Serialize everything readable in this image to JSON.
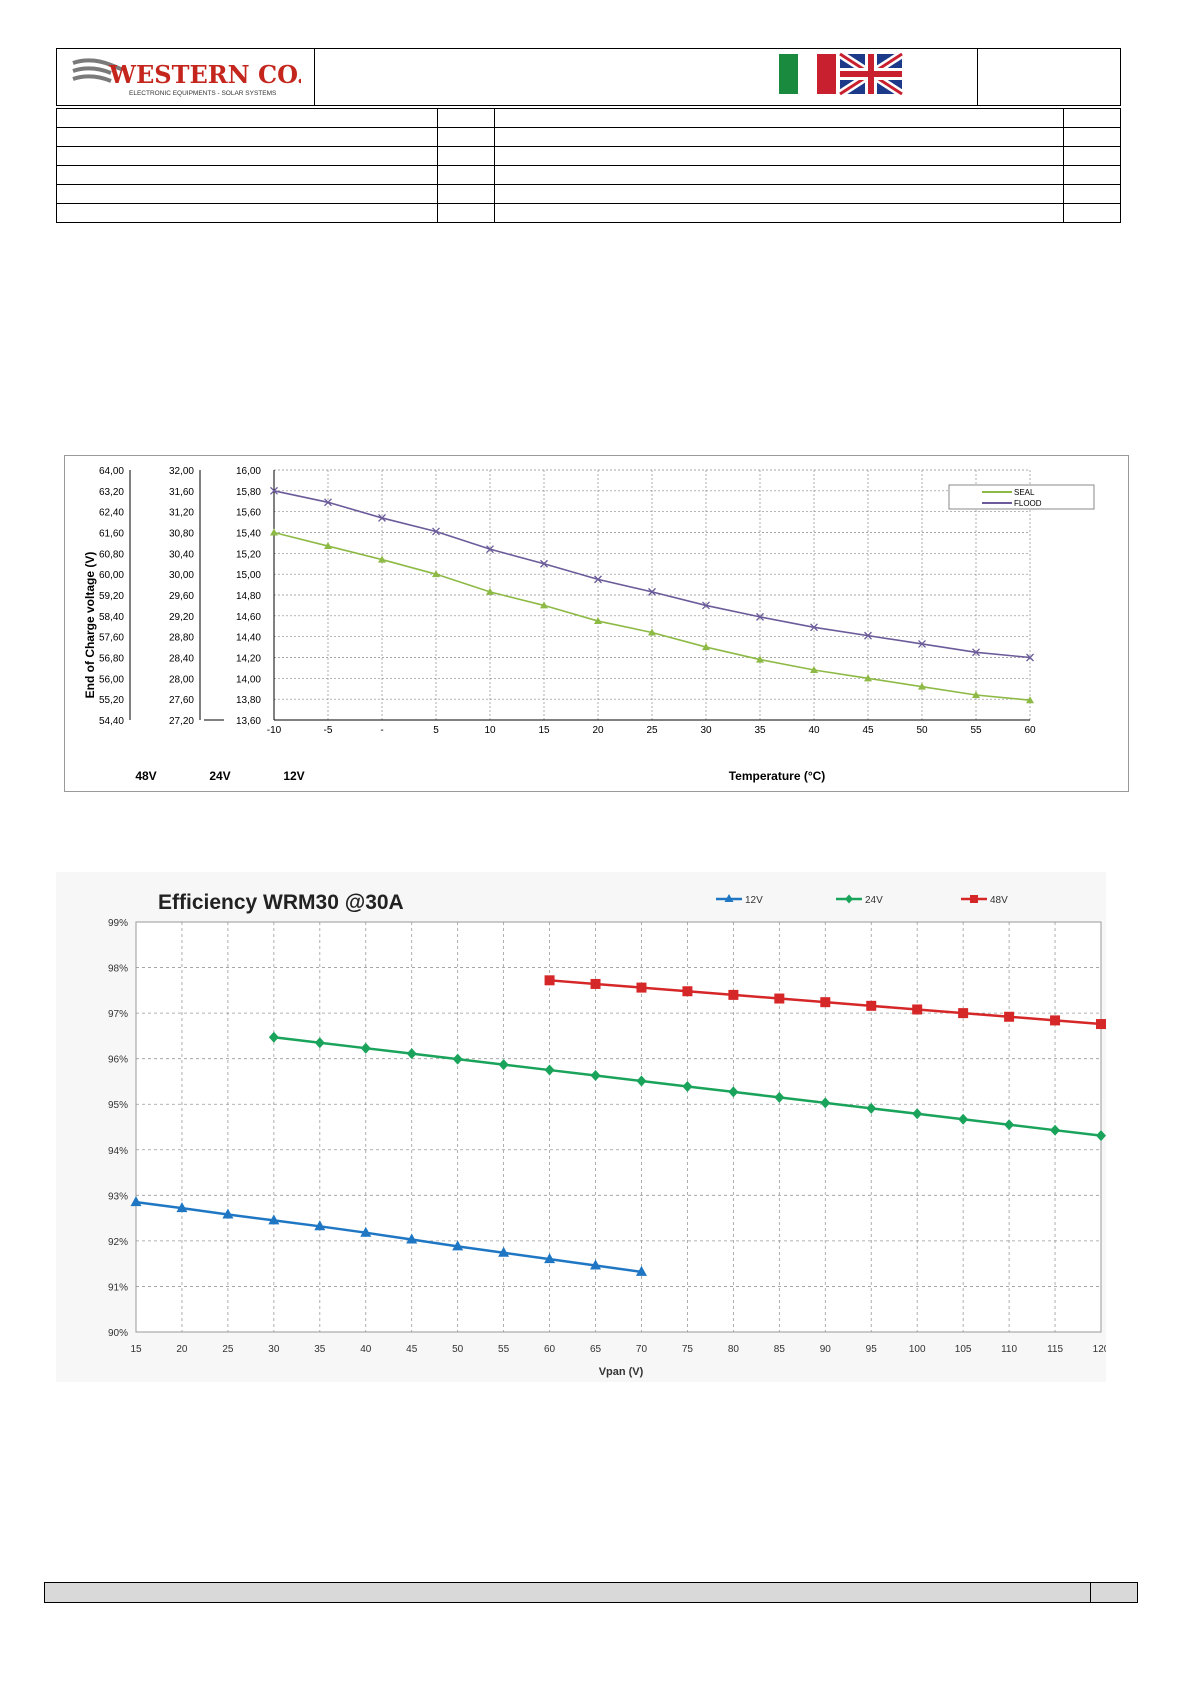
{
  "header": {
    "logo_text": "WESTERN CO.",
    "logo_tagline": "ELECTRONIC EQUIPMENTS - SOLAR SYSTEMS",
    "flags": [
      "italy-flag",
      "uk-flag"
    ]
  },
  "charts": {
    "voltage": {
      "y_axis_label": "End of Charge voltage (V)",
      "x_axis_label": "Temperature (°C)",
      "scale_labels": [
        "48V",
        "24V",
        "12V"
      ],
      "ticks_48v": [
        "64,00",
        "63,20",
        "62,40",
        "61,60",
        "60,80",
        "60,00",
        "59,20",
        "58,40",
        "57,60",
        "56,80",
        "56,00",
        "55,20",
        "54,40"
      ],
      "ticks_24v": [
        "32,00",
        "31,60",
        "31,20",
        "30,80",
        "30,40",
        "30,00",
        "29,60",
        "29,20",
        "28,80",
        "28,40",
        "28,00",
        "27,60",
        "27,20"
      ],
      "ticks_12v": [
        "16,00",
        "15,80",
        "15,60",
        "15,40",
        "15,20",
        "15,00",
        "14,80",
        "14,60",
        "14,40",
        "14,20",
        "14,00",
        "13,80",
        "13,60"
      ],
      "x_tick_labels": [
        "-10",
        "-5",
        "-",
        "5",
        "10",
        "15",
        "20",
        "25",
        "30",
        "35",
        "40",
        "45",
        "50",
        "55",
        "60"
      ]
    },
    "efficiency": {
      "title": "Efficiency WRM30 @30A",
      "x_axis_label": "Vpan (V)",
      "y_tick_labels": [
        "99%",
        "98%",
        "97%",
        "96%",
        "95%",
        "94%",
        "93%",
        "92%",
        "91%",
        "90%"
      ]
    }
  },
  "chart_data": [
    {
      "type": "line",
      "xlabel": "Temperature (°C)",
      "ylabel": "End of Charge voltage (V)",
      "x": [
        -10,
        -5,
        0,
        5,
        10,
        15,
        20,
        25,
        30,
        35,
        40,
        45,
        50,
        55,
        60
      ],
      "ylim": [
        13.6,
        16.0
      ],
      "xlim": [
        -10,
        60
      ],
      "grid": true,
      "legend_position": "top-right",
      "series": [
        {
          "name": "SEAL",
          "color": "#8dba45",
          "marker": "triangle",
          "values": [
            15.4,
            15.27,
            15.14,
            15.0,
            14.83,
            14.7,
            14.55,
            14.44,
            14.3,
            14.18,
            14.08,
            14.0,
            13.92,
            13.84,
            13.79
          ]
        },
        {
          "name": "FLOOD",
          "color": "#6b5b9a",
          "marker": "x",
          "values": [
            15.8,
            15.69,
            15.54,
            15.41,
            15.24,
            15.1,
            14.95,
            14.83,
            14.7,
            14.59,
            14.49,
            14.41,
            14.33,
            14.25,
            14.2
          ]
        }
      ]
    },
    {
      "type": "line",
      "title": "Efficiency WRM30 @30A",
      "xlabel": "Vpan (V)",
      "ylabel": "",
      "x_ticks": [
        15,
        20,
        25,
        30,
        35,
        40,
        45,
        50,
        55,
        60,
        65,
        70,
        75,
        80,
        85,
        90,
        95,
        100,
        105,
        110,
        115,
        120
      ],
      "ylim": [
        90,
        99
      ],
      "xlim": [
        15,
        120
      ],
      "grid": true,
      "legend_position": "top",
      "series": [
        {
          "name": "12V",
          "color": "#1f77c4",
          "marker": "triangle",
          "x": [
            15,
            20,
            25,
            30,
            35,
            40,
            45,
            50,
            55,
            60,
            65,
            70
          ],
          "values": [
            92.85,
            92.72,
            92.58,
            92.45,
            92.32,
            92.18,
            92.03,
            91.88,
            91.74,
            91.6,
            91.46,
            91.32
          ]
        },
        {
          "name": "24V",
          "color": "#1aa35b",
          "marker": "diamond",
          "x": [
            30,
            35,
            40,
            45,
            50,
            55,
            60,
            65,
            70,
            75,
            80,
            85,
            90,
            95,
            100,
            105,
            110,
            115,
            120
          ],
          "values": [
            96.47,
            96.35,
            96.23,
            96.11,
            95.99,
            95.87,
            95.75,
            95.63,
            95.51,
            95.39,
            95.27,
            95.15,
            95.03,
            94.91,
            94.79,
            94.67,
            94.55,
            94.43,
            94.31
          ]
        },
        {
          "name": "48V",
          "color": "#d62728",
          "marker": "square",
          "x": [
            60,
            65,
            70,
            75,
            80,
            85,
            90,
            95,
            100,
            105,
            110,
            115,
            120
          ],
          "values": [
            97.72,
            97.64,
            97.56,
            97.48,
            97.4,
            97.32,
            97.24,
            97.16,
            97.08,
            97.0,
            96.92,
            96.84,
            96.76
          ]
        }
      ]
    }
  ]
}
